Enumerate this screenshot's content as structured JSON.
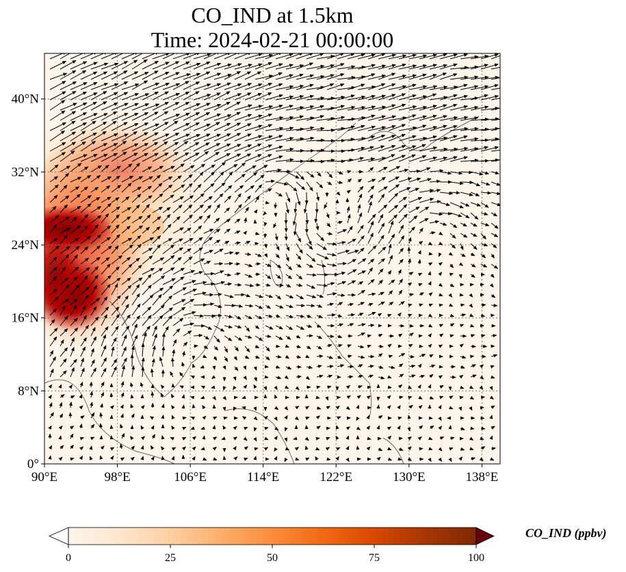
{
  "map": {
    "title_line1": "CO_IND at 1.5km",
    "title_line2": "Time: 2024-02-21 00:00:00",
    "lon_range": [
      90,
      140
    ],
    "lat_range": [
      0,
      45
    ],
    "lon_ticks": [
      90,
      98,
      106,
      114,
      122,
      130,
      138
    ],
    "lon_tick_labels": [
      "90°E",
      "98°E",
      "106°E",
      "114°E",
      "122°E",
      "130°E",
      "138°E"
    ],
    "lat_ticks": [
      0,
      8,
      16,
      24,
      32,
      40
    ],
    "lat_tick_labels": [
      "0°",
      "8°N",
      "16°N",
      "24°N",
      "32°N",
      "40°N"
    ],
    "gridlines": "dotted",
    "field": "CO_IND",
    "level": "1.5km",
    "time": "2024-02-21 00:00:00"
  },
  "colorbar": {
    "label": "CO_IND (ppbv)",
    "range": [
      0,
      100
    ],
    "ticks": [
      0,
      25,
      50,
      75,
      100
    ],
    "tick_labels": [
      "0",
      "25",
      "50",
      "75",
      "100"
    ],
    "extend": "both",
    "colors": [
      "#fff5eb",
      "#fee6ce",
      "#fdd0a2",
      "#fdae6b",
      "#fd8d3c",
      "#f16913",
      "#d94801",
      "#a63603",
      "#7f2704"
    ],
    "colormap_name": "Oranges-Red"
  }
}
